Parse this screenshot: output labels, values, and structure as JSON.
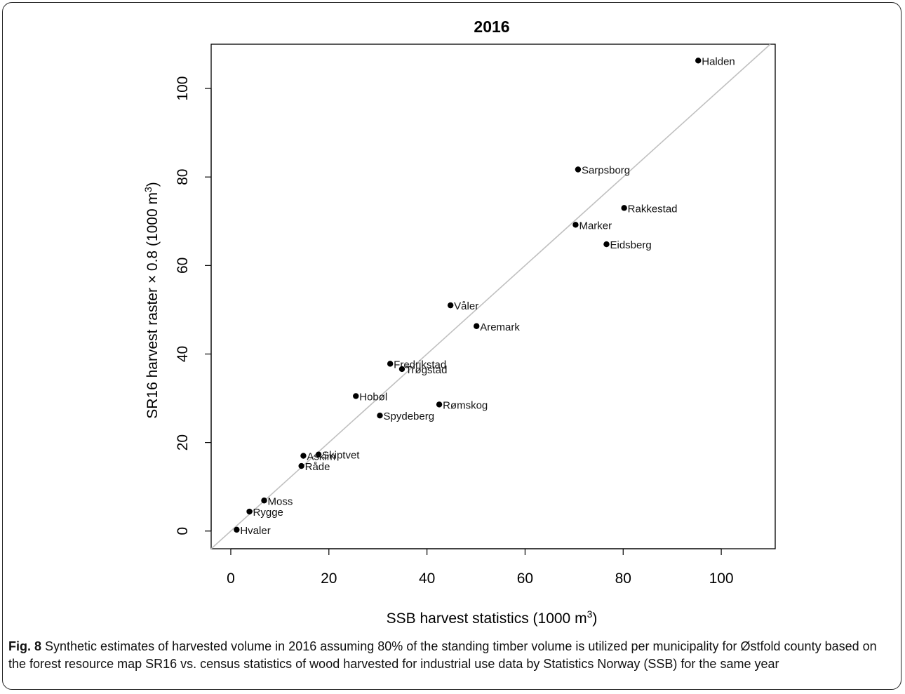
{
  "caption": {
    "label": "Fig. 8",
    "text": " Synthetic estimates of harvested volume in 2016 assuming 80% of the standing timber volume is utilized per municipality for Østfold county based on the forest resource map SR16 vs. census statistics of wood harvested for industrial use data by Statistics Norway (SSB) for the same year"
  },
  "chart_data": {
    "type": "scatter",
    "title": "2016",
    "xlabel": "SSB harvest statistics (1000 m³)",
    "ylabel": "SR16 harvest raster × 0.8 (1000 m³)",
    "xlim": [
      -4,
      111
    ],
    "ylim": [
      -4,
      110
    ],
    "xticks": [
      0,
      20,
      40,
      60,
      80,
      100
    ],
    "yticks": [
      0,
      20,
      40,
      60,
      80,
      100
    ],
    "reference_line": "y = x",
    "reference_line_color": "#c0c0c0",
    "point_color": "#000000",
    "points": [
      {
        "label": "Halden",
        "x": 95.3,
        "y": 106.3
      },
      {
        "label": "Sarpsborg",
        "x": 70.8,
        "y": 81.7
      },
      {
        "label": "Rakkestad",
        "x": 80.2,
        "y": 73.0
      },
      {
        "label": "Marker",
        "x": 70.3,
        "y": 69.2
      },
      {
        "label": "Eidsberg",
        "x": 76.6,
        "y": 64.8
      },
      {
        "label": "Våler",
        "x": 44.8,
        "y": 51.0
      },
      {
        "label": "Aremark",
        "x": 50.1,
        "y": 46.3
      },
      {
        "label": "Fredrikstad",
        "x": 32.5,
        "y": 37.8
      },
      {
        "label": "Trøgstad",
        "x": 34.9,
        "y": 36.6
      },
      {
        "label": "Hobøl",
        "x": 25.5,
        "y": 30.5
      },
      {
        "label": "Rømskog",
        "x": 42.5,
        "y": 28.6
      },
      {
        "label": "Spydeberg",
        "x": 30.4,
        "y": 26.1
      },
      {
        "label": "Skiptvet",
        "x": 17.9,
        "y": 17.3
      },
      {
        "label": "Askim",
        "x": 14.8,
        "y": 17.0
      },
      {
        "label": "Råde",
        "x": 14.4,
        "y": 14.7
      },
      {
        "label": "Moss",
        "x": 6.8,
        "y": 6.9
      },
      {
        "label": "Rygge",
        "x": 3.8,
        "y": 4.4
      },
      {
        "label": "Hvaler",
        "x": 1.2,
        "y": 0.3
      }
    ]
  }
}
